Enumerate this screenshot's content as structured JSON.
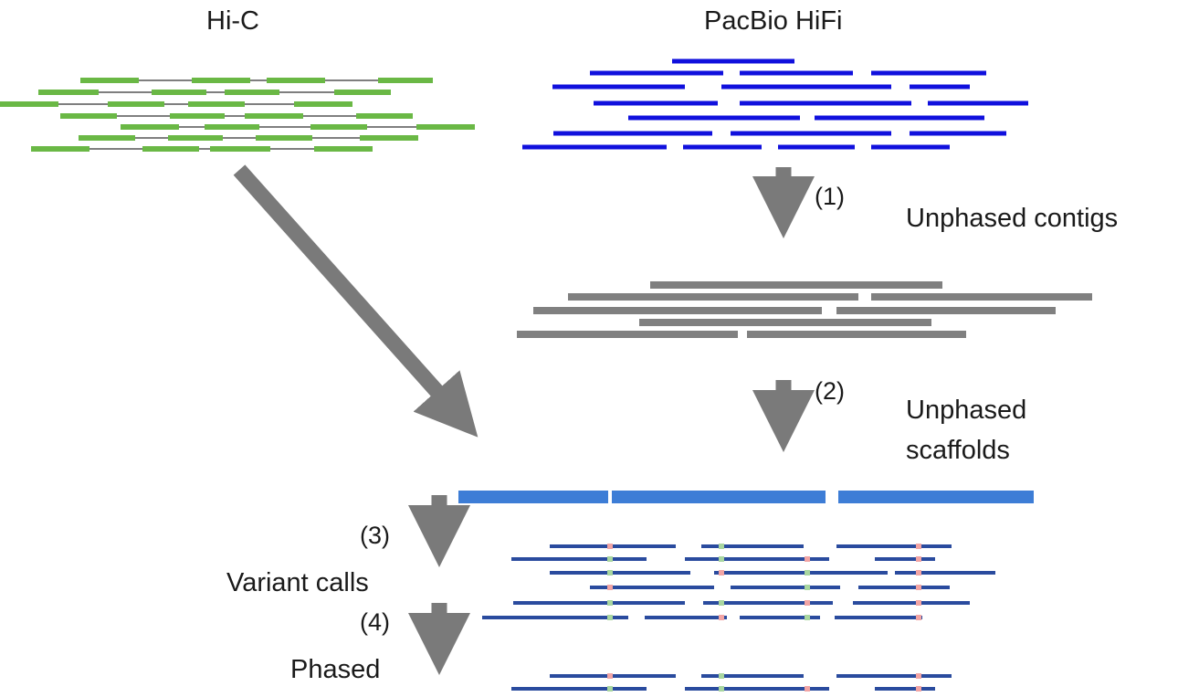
{
  "labels": {
    "hic": "Hi-C",
    "hifi": "PacBio HiFi",
    "contigs": "Unphased contigs",
    "scaffolds_line1": "Unphased",
    "scaffolds_line2": "scaffolds",
    "variant_calls": "Variant calls",
    "phased": "Phased"
  },
  "steps": {
    "s1": "(1)",
    "s2": "(2)",
    "s3": "(3)",
    "s4": "(4)"
  },
  "colors": {
    "hic_read": "#6ab845",
    "hic_link": "#333333",
    "hifi_read": "#1010dd",
    "contig": "#808080",
    "arrow": "#7a7a7a",
    "scaffold": "#3d7dd6",
    "aligned_read": "#2a4b9e",
    "variant_a": "#a9d6a0",
    "variant_b": "#f2a5a5"
  }
}
